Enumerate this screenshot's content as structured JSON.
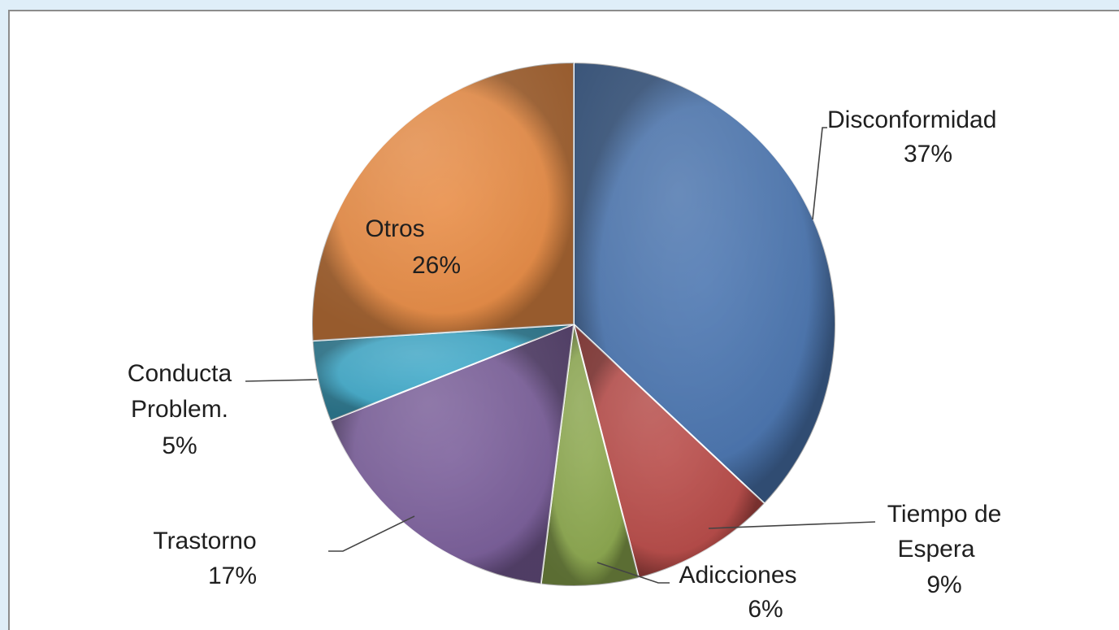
{
  "chart_data": {
    "type": "pie",
    "slices": [
      {
        "label": "Disconformidad",
        "value": 37,
        "value_label": "37%",
        "color": "#4a75b0"
      },
      {
        "label": "Tiempo de Espera",
        "value": 9,
        "value_label": "9%",
        "color": "#b84a47"
      },
      {
        "label": "Adicciones",
        "value": 6,
        "value_label": "6%",
        "color": "#8ca84e"
      },
      {
        "label": "Trastorno",
        "value": 17,
        "value_label": "17%",
        "color": "#7a5e9a"
      },
      {
        "label": "Conducta Problem.",
        "value": 5,
        "value_label": "5%",
        "color": "#3fa9c9"
      },
      {
        "label": "Otros",
        "value": 26,
        "value_label": "26%",
        "color": "#e88c45"
      }
    ],
    "legend": "none"
  }
}
